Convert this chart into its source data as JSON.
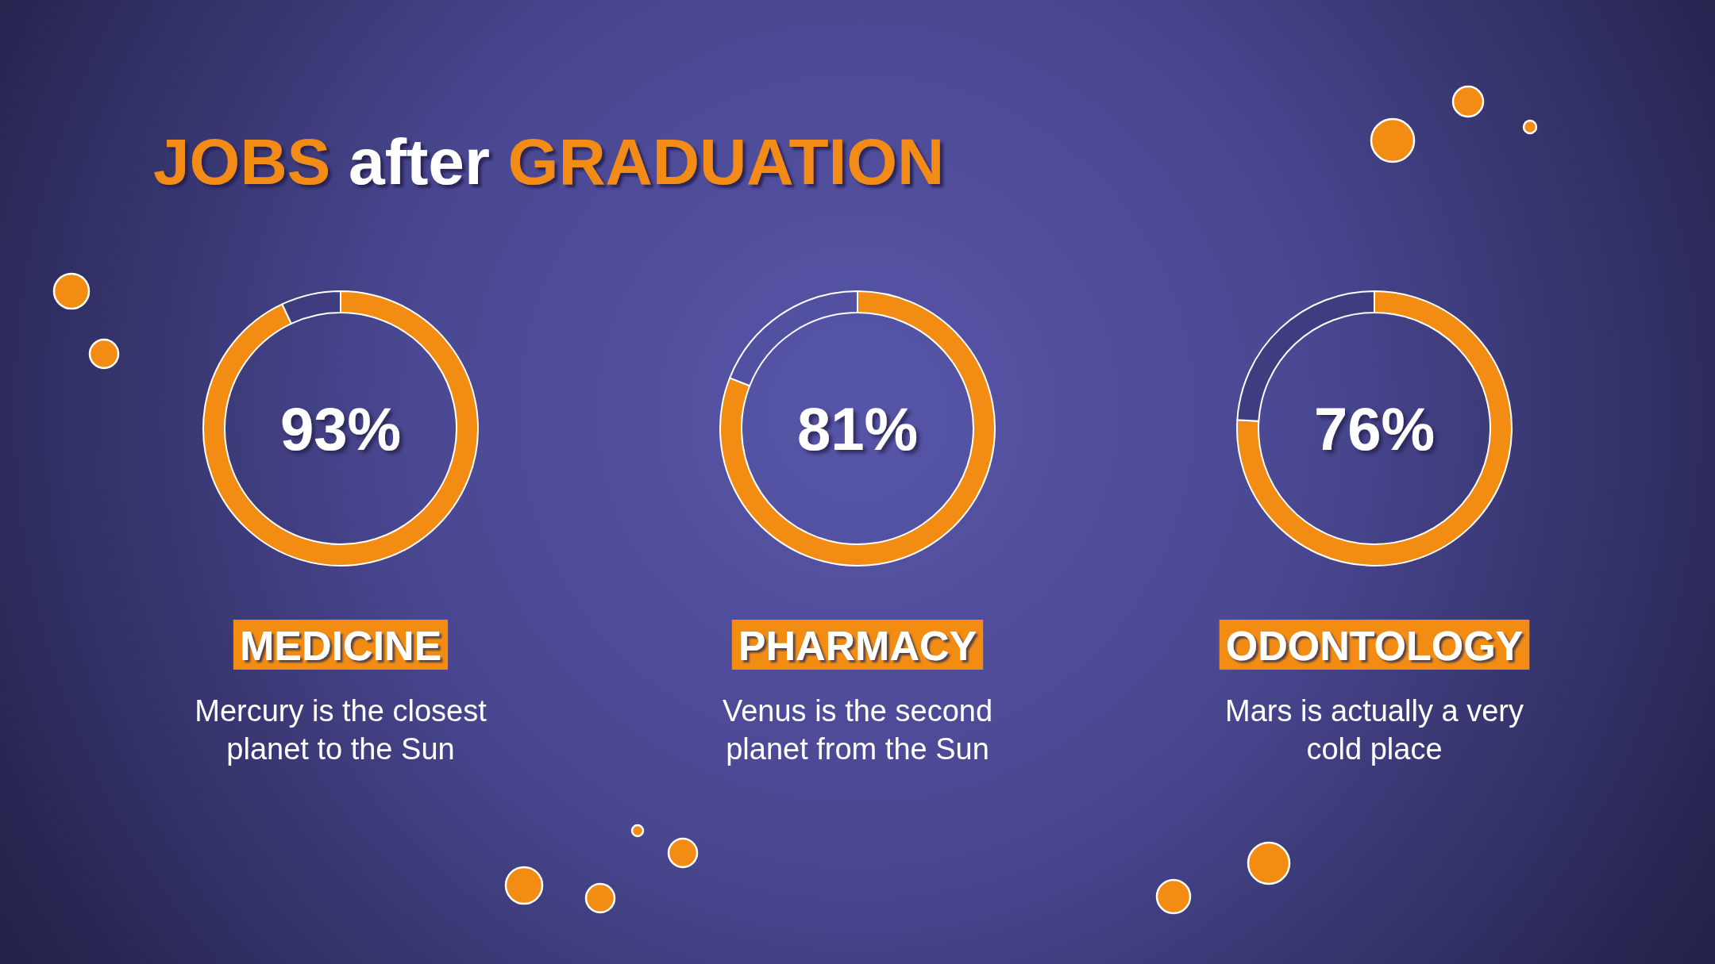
{
  "chart_data": [
    {
      "type": "other",
      "title": "JOBS after GRADUATION"
    },
    {
      "type": "donut",
      "title": "MEDICINE",
      "subtitle": "Mercury is the closest planet to the Sun",
      "categories": [
        null,
        null
      ],
      "values": [
        93,
        7
      ],
      "colors": [
        "#f28c13",
        "#3f3d7f"
      ],
      "value_labels": [
        "93%",
        null
      ]
    },
    {
      "type": "donut",
      "title": "PHARMACY",
      "subtitle": "Venus is the second planet from the Sun",
      "categories": [
        null,
        null
      ],
      "values": [
        81,
        19
      ],
      "colors": [
        "#f28c13",
        "#5250a0"
      ],
      "value_labels": [
        "81%",
        null
      ]
    },
    {
      "type": "donut",
      "title": "ODONTOLOGY",
      "subtitle": "Mars is actually a very cold place",
      "categories": [
        null,
        null
      ],
      "values": [
        76,
        24
      ],
      "colors": [
        "#f28c13",
        "#3f3d80"
      ],
      "value_labels": [
        "76%",
        null
      ]
    }
  ]
}
